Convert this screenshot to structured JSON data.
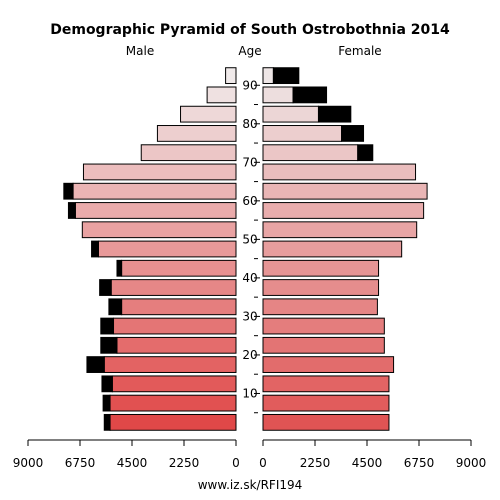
{
  "chart_data": {
    "type": "bar",
    "title": "Demographic Pyramid of South Ostrobothnia 2014",
    "male_label": "Male",
    "female_label": "Female",
    "age_label": "Age",
    "source": "www.iz.sk/RFI194",
    "xlim": [
      0,
      9000
    ],
    "x_ticks": [
      0,
      2250,
      4500,
      6750,
      9000
    ],
    "age_ticks": [
      10,
      20,
      30,
      40,
      50,
      60,
      70,
      80,
      90
    ],
    "age_groups": [
      "0-4",
      "5-9",
      "10-14",
      "15-19",
      "20-24",
      "25-29",
      "30-34",
      "35-39",
      "40-44",
      "45-49",
      "50-54",
      "55-59",
      "60-64",
      "65-69",
      "70-74",
      "75-79",
      "80-84",
      "85-89",
      "90+"
    ],
    "series": [
      {
        "name": "Male",
        "values": [
          5450,
          5450,
          5350,
          5700,
          5150,
          5300,
          4950,
          5400,
          4950,
          5950,
          6650,
          6950,
          7050,
          6600,
          4100,
          3400,
          2400,
          1250,
          450
        ]
      },
      {
        "name": "Male excess",
        "values": [
          250,
          300,
          450,
          750,
          700,
          550,
          550,
          500,
          200,
          300,
          0,
          300,
          400,
          0,
          0,
          0,
          0,
          0,
          0
        ]
      },
      {
        "name": "Female",
        "values": [
          5450,
          5450,
          5450,
          5650,
          5250,
          5250,
          4950,
          5000,
          5000,
          6000,
          6650,
          6950,
          7100,
          6600,
          4100,
          3400,
          2400,
          1300,
          450
        ]
      },
      {
        "name": "Female excess",
        "values": [
          0,
          0,
          0,
          0,
          0,
          0,
          0,
          0,
          0,
          0,
          0,
          0,
          0,
          0,
          650,
          950,
          1400,
          1450,
          1100
        ]
      }
    ],
    "colors": {
      "male_young": "#e04848",
      "male_old": "#f0eaea",
      "female_young": "#e05454",
      "female_old": "#eee6e6",
      "excess": "#000000"
    }
  }
}
